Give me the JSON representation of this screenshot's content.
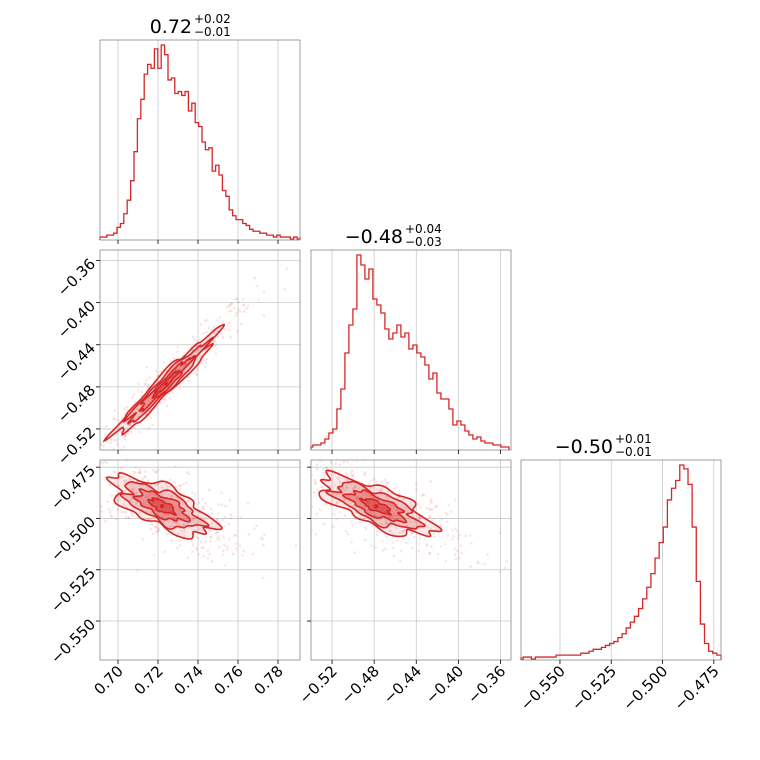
{
  "chart_data": {
    "type": "corner",
    "colors": {
      "series": "#d62728",
      "grid": "#c8c8c8",
      "frame": "#888888"
    },
    "grid": true,
    "parameters": [
      {
        "range": [
          0.691,
          0.791
        ],
        "ticks": [
          0.7,
          0.72,
          0.74,
          0.76,
          0.78
        ],
        "tick_labels": [
          "0.70",
          "0.72",
          "0.74",
          "0.76",
          "0.78"
        ]
      },
      {
        "range": [
          -0.54,
          -0.35
        ],
        "ticks": [
          -0.52,
          -0.48,
          -0.44,
          -0.4,
          -0.36
        ],
        "tick_labels": [
          "−0.52",
          "−0.48",
          "−0.44",
          "−0.40",
          "−0.36"
        ]
      },
      {
        "range": [
          -0.569,
          -0.4715
        ],
        "ticks": [
          -0.55,
          -0.525,
          -0.5,
          -0.475
        ],
        "tick_labels": [
          "−0.550",
          "−0.525",
          "−0.500",
          "−0.475"
        ]
      }
    ],
    "titles": [
      {
        "main": "0.72",
        "plus": "+0.02",
        "minus": "−0.01"
      },
      {
        "main": "−0.48",
        "plus": "+0.04",
        "minus": "−0.03"
      },
      {
        "main": "−0.50",
        "plus": "+0.01",
        "minus": "−0.01"
      }
    ],
    "histograms": [
      {
        "edges": [
          0.691,
          0.793
        ],
        "counts": [
          1,
          1,
          2,
          2,
          3,
          6,
          8,
          13,
          20,
          30,
          45,
          62,
          72,
          85,
          90,
          88,
          98,
          88,
          100,
          95,
          82,
          83,
          75,
          76,
          74,
          76,
          66,
          70,
          60,
          58,
          50,
          46,
          47,
          35,
          38,
          33,
          25,
          22,
          15,
          12,
          10,
          10,
          8,
          7,
          5,
          4,
          4,
          3,
          3,
          2,
          2,
          1,
          2,
          1,
          1,
          1,
          0,
          1,
          0,
          1
        ]
      },
      {
        "edges": [
          -0.542,
          -0.352
        ],
        "counts": [
          1,
          2,
          2,
          3,
          5,
          8,
          10,
          20,
          30,
          48,
          62,
          70,
          97,
          92,
          85,
          90,
          75,
          72,
          68,
          60,
          55,
          58,
          62,
          56,
          58,
          50,
          52,
          48,
          46,
          42,
          35,
          38,
          28,
          25,
          25,
          20,
          12,
          14,
          12,
          9,
          7,
          5,
          6,
          4,
          3,
          3,
          2,
          2,
          1,
          1
        ]
      },
      {
        "edges": [
          -0.572,
          -0.4715
        ],
        "counts": [
          1,
          0,
          1,
          1,
          0,
          1,
          1,
          1,
          1,
          1,
          2,
          2,
          2,
          2,
          2,
          2,
          3,
          3,
          4,
          5,
          5,
          6,
          7,
          8,
          9,
          11,
          13,
          16,
          19,
          22,
          26,
          31,
          37,
          44,
          52,
          60,
          68,
          82,
          88,
          92,
          100,
          98,
          90,
          68,
          40,
          18,
          8,
          4,
          3,
          2
        ]
      }
    ],
    "correlations": [
      {
        "pair": [
          0,
          1
        ],
        "center": [
          0.724,
          -0.477
        ],
        "sigma": [
          0.0128,
          0.0245
        ],
        "rho": 0.97
      },
      {
        "pair": [
          0,
          2
        ],
        "center": [
          0.722,
          -0.494
        ],
        "sigma": [
          0.0125,
          0.0072
        ],
        "rho": -0.68
      },
      {
        "pair": [
          1,
          2
        ],
        "center": [
          -0.478,
          -0.494
        ],
        "sigma": [
          0.0265,
          0.0072
        ],
        "rho": -0.72
      }
    ],
    "contour_levels": [
      0.5,
      1.0,
      1.5,
      2.0
    ],
    "scatter_points_per_panel": 420
  }
}
